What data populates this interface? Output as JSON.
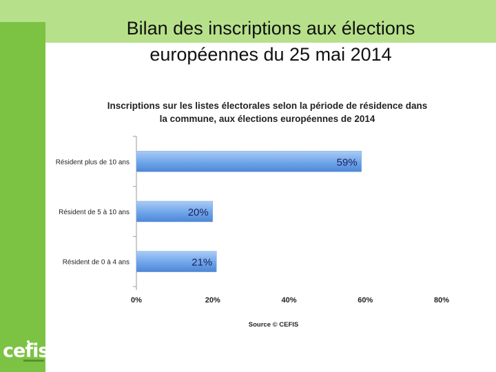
{
  "slide": {
    "title_line1": "Bilan des inscriptions aux élections",
    "title_line2": "européennes du 25 mai 2014"
  },
  "logo": {
    "text": "cefis",
    "icon": "cefis-logo-icon"
  },
  "colors": {
    "band": "#b7e08a",
    "sidebar": "#7cc243",
    "bar": "#5b95e0",
    "bar_light": "#a9cbf5"
  },
  "chart_data": {
    "type": "bar",
    "orientation": "horizontal",
    "title": [
      "Inscriptions sur les listes électorales selon la période de résidence dans",
      "la commune, aux élections européennes de 2014"
    ],
    "categories": [
      "Résident plus de 10 ans",
      "Résident de 5 à 10 ans",
      "Résident de 0 à 4 ans"
    ],
    "values": [
      59,
      20,
      21
    ],
    "data_labels": [
      "59%",
      "20%",
      "21%"
    ],
    "xlim": [
      0,
      80
    ],
    "xticks": [
      0,
      20,
      40,
      60,
      80
    ],
    "xtick_labels": [
      "0%",
      "20%",
      "40%",
      "60%",
      "80%"
    ],
    "source": "Source © CEFIS",
    "grid": false,
    "legend": "none"
  }
}
